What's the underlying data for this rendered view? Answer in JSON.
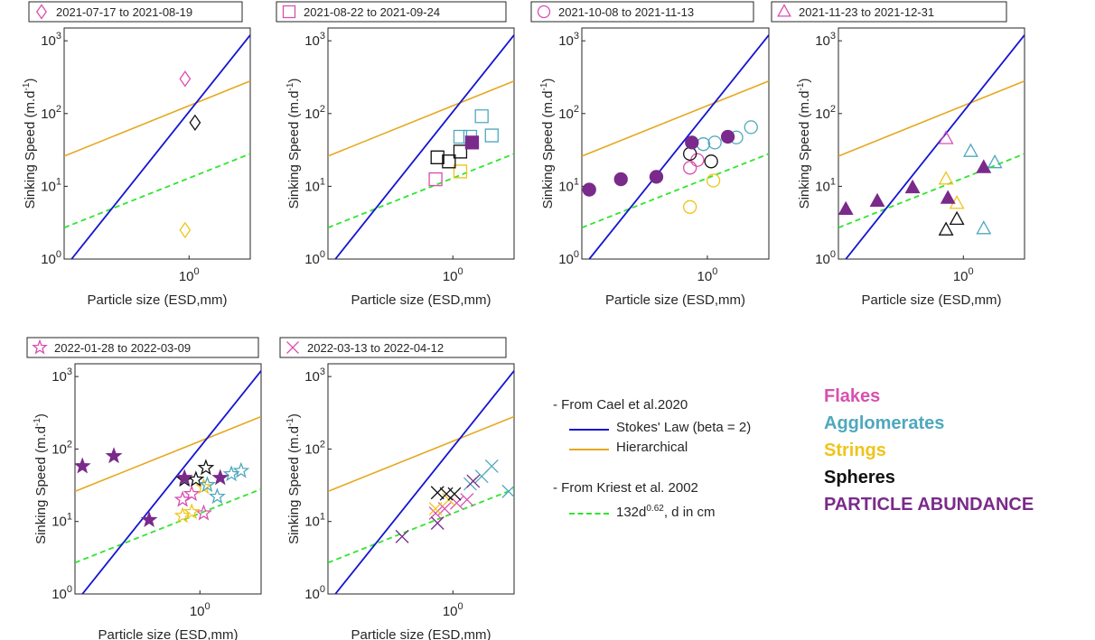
{
  "colors": {
    "stokes": "#1414d2",
    "hierarchical": "#e6a820",
    "kriest": "#2ee62e",
    "flakes": "#d94fb0",
    "agglomerates": "#4ea8bd",
    "strings": "#f0c419",
    "spheres": "#111111",
    "abundance": "#7a2a8a"
  },
  "legend": {
    "cael_header": "- From Cael et al.2020",
    "stokes_label": "Stokes' Law (beta = 2)",
    "hierarchical_label": "Hierarchical",
    "kriest_header": "- From Kriest et al. 2002",
    "kriest_prefix": "132d",
    "kriest_exponent": "0.62",
    "kriest_suffix": ", d in cm"
  },
  "categories": [
    {
      "label": "Flakes",
      "color": "#d94fb0"
    },
    {
      "label": "Agglomerates",
      "color": "#4ea8bd"
    },
    {
      "label": "Strings",
      "color": "#f0c419"
    },
    {
      "label": "Spheres",
      "color": "#111111"
    },
    {
      "label": "PARTICLE ABUNDANCE",
      "color": "#7a2a8a"
    }
  ],
  "chart_data": [
    {
      "type": "scatter",
      "title": "2021-07-17 to 2021-08-19",
      "marker": "diamond",
      "xlabel": "Particle size (ESD,mm)",
      "ylabel": "Sinking Speed (m.d-1)",
      "xscale": "log",
      "yscale": "log",
      "xlim": [
        0.2,
        2.2
      ],
      "ylim": [
        1,
        1500
      ],
      "grid": false,
      "xticks": [
        {
          "v": 1,
          "base": "10",
          "exp": "0"
        }
      ],
      "yticks": [
        {
          "v": 1,
          "base": "10",
          "exp": "0"
        },
        {
          "v": 10,
          "base": "10",
          "exp": "1"
        },
        {
          "v": 100,
          "base": "10",
          "exp": "2"
        },
        {
          "v": 1000,
          "base": "10",
          "exp": "3"
        }
      ],
      "lines": {
        "stokes": [
          [
            0.22,
            1
          ],
          [
            2.2,
            1200
          ]
        ],
        "hierarchical": [
          [
            0.2,
            26
          ],
          [
            2.2,
            280
          ]
        ],
        "kriest": [
          [
            0.2,
            2.7
          ],
          [
            2.2,
            28
          ]
        ]
      },
      "series": [
        {
          "category": "Flakes",
          "filled": false,
          "points": [
            [
              0.95,
              300
            ]
          ]
        },
        {
          "category": "Strings",
          "filled": false,
          "points": [
            [
              0.95,
              2.5
            ]
          ]
        },
        {
          "category": "Spheres",
          "filled": false,
          "points": [
            [
              1.08,
              75
            ]
          ]
        }
      ]
    },
    {
      "type": "scatter",
      "title": "2021-08-22 to 2021-09-24",
      "marker": "square",
      "xlabel": "Particle size (ESD,mm)",
      "ylabel": "Sinking Speed (m.d-1)",
      "xscale": "log",
      "yscale": "log",
      "xlim": [
        0.2,
        2.2
      ],
      "ylim": [
        1,
        1500
      ],
      "grid": false,
      "xticks": [
        {
          "v": 1,
          "base": "10",
          "exp": "0"
        }
      ],
      "yticks": [
        {
          "v": 1,
          "base": "10",
          "exp": "0"
        },
        {
          "v": 10,
          "base": "10",
          "exp": "1"
        },
        {
          "v": 100,
          "base": "10",
          "exp": "2"
        },
        {
          "v": 1000,
          "base": "10",
          "exp": "3"
        }
      ],
      "lines": {
        "stokes": [
          [
            0.22,
            1
          ],
          [
            2.2,
            1200
          ]
        ],
        "hierarchical": [
          [
            0.2,
            26
          ],
          [
            2.2,
            280
          ]
        ],
        "kriest": [
          [
            0.2,
            2.7
          ],
          [
            2.2,
            28
          ]
        ]
      },
      "series": [
        {
          "category": "Flakes",
          "filled": false,
          "points": [
            [
              0.8,
              12.5
            ]
          ]
        },
        {
          "category": "Strings",
          "filled": false,
          "points": [
            [
              1.1,
              16
            ]
          ]
        },
        {
          "category": "Spheres",
          "filled": false,
          "points": [
            [
              0.82,
              25
            ],
            [
              0.95,
              22
            ],
            [
              1.1,
              30
            ]
          ]
        },
        {
          "category": "Agglomerates",
          "filled": false,
          "points": [
            [
              1.1,
              48
            ],
            [
              1.25,
              48
            ],
            [
              1.45,
              92
            ],
            [
              1.65,
              50
            ]
          ]
        },
        {
          "category": "PARTICLE ABUNDANCE",
          "filled": true,
          "points": [
            [
              1.28,
              40
            ]
          ]
        }
      ]
    },
    {
      "type": "scatter",
      "title": "2021-10-08 to 2021-11-13",
      "marker": "circle",
      "xlabel": "Particle size (ESD,mm)",
      "ylabel": "Sinking Speed (m.d-1)",
      "xscale": "log",
      "yscale": "log",
      "xlim": [
        0.2,
        2.2
      ],
      "ylim": [
        1,
        1500
      ],
      "grid": false,
      "xticks": [
        {
          "v": 1,
          "base": "10",
          "exp": "0"
        }
      ],
      "yticks": [
        {
          "v": 1,
          "base": "10",
          "exp": "0"
        },
        {
          "v": 10,
          "base": "10",
          "exp": "1"
        },
        {
          "v": 100,
          "base": "10",
          "exp": "2"
        },
        {
          "v": 1000,
          "base": "10",
          "exp": "3"
        }
      ],
      "lines": {
        "stokes": [
          [
            0.22,
            1
          ],
          [
            2.2,
            1200
          ]
        ],
        "hierarchical": [
          [
            0.2,
            26
          ],
          [
            2.2,
            280
          ]
        ],
        "kriest": [
          [
            0.2,
            2.7
          ],
          [
            2.2,
            28
          ]
        ]
      },
      "series": [
        {
          "category": "Flakes",
          "filled": false,
          "points": [
            [
              0.8,
              18
            ],
            [
              0.88,
              23
            ]
          ]
        },
        {
          "category": "Strings",
          "filled": false,
          "points": [
            [
              0.8,
              5.2
            ],
            [
              1.08,
              12
            ]
          ]
        },
        {
          "category": "Spheres",
          "filled": false,
          "points": [
            [
              0.8,
              28
            ],
            [
              1.05,
              22
            ]
          ]
        },
        {
          "category": "Agglomerates",
          "filled": false,
          "points": [
            [
              0.95,
              38
            ],
            [
              1.1,
              40
            ],
            [
              1.45,
              47
            ],
            [
              1.75,
              65
            ]
          ]
        },
        {
          "category": "PARTICLE ABUNDANCE",
          "filled": true,
          "points": [
            [
              0.22,
              9
            ],
            [
              0.33,
              12.5
            ],
            [
              0.52,
              13.5
            ],
            [
              0.82,
              40
            ],
            [
              1.3,
              48
            ]
          ]
        }
      ]
    },
    {
      "type": "scatter",
      "title": "2021-11-23 to 2021-12-31",
      "marker": "triangle",
      "xlabel": "Particle size (ESD,mm)",
      "ylabel": "Sinking Speed (m.d-1)",
      "xscale": "log",
      "yscale": "log",
      "xlim": [
        0.2,
        2.2
      ],
      "ylim": [
        1,
        1500
      ],
      "grid": false,
      "xticks": [
        {
          "v": 1,
          "base": "10",
          "exp": "0"
        }
      ],
      "yticks": [
        {
          "v": 1,
          "base": "10",
          "exp": "0"
        },
        {
          "v": 10,
          "base": "10",
          "exp": "1"
        },
        {
          "v": 100,
          "base": "10",
          "exp": "2"
        },
        {
          "v": 1000,
          "base": "10",
          "exp": "3"
        }
      ],
      "lines": {
        "stokes": [
          [
            0.22,
            1
          ],
          [
            2.2,
            1200
          ]
        ],
        "hierarchical": [
          [
            0.2,
            26
          ],
          [
            2.2,
            280
          ]
        ],
        "kriest": [
          [
            0.2,
            2.7
          ],
          [
            2.2,
            28
          ]
        ]
      },
      "series": [
        {
          "category": "Flakes",
          "filled": false,
          "points": [
            [
              0.8,
              45
            ]
          ]
        },
        {
          "category": "Strings",
          "filled": false,
          "points": [
            [
              0.8,
              12.5
            ],
            [
              0.92,
              5.8
            ]
          ]
        },
        {
          "category": "Spheres",
          "filled": false,
          "points": [
            [
              0.8,
              2.5
            ],
            [
              0.92,
              3.5
            ]
          ]
        },
        {
          "category": "Agglomerates",
          "filled": false,
          "points": [
            [
              1.1,
              30
            ],
            [
              1.3,
              2.6
            ],
            [
              1.5,
              21
            ]
          ]
        },
        {
          "category": "PARTICLE ABUNDANCE",
          "filled": true,
          "points": [
            [
              0.22,
              4.8
            ],
            [
              0.33,
              6.2
            ],
            [
              0.52,
              9.5
            ],
            [
              0.82,
              6.8
            ],
            [
              1.3,
              18
            ]
          ]
        }
      ]
    },
    {
      "type": "scatter",
      "title": "2022-01-28 to 2022-03-09",
      "marker": "star",
      "xlabel": "Particle size (ESD,mm)",
      "ylabel": "Sinking Speed (m.d-1)",
      "xscale": "log",
      "yscale": "log",
      "xlim": [
        0.2,
        2.2
      ],
      "ylim": [
        1,
        1500
      ],
      "grid": false,
      "xticks": [
        {
          "v": 1,
          "base": "10",
          "exp": "0"
        }
      ],
      "yticks": [
        {
          "v": 1,
          "base": "10",
          "exp": "0"
        },
        {
          "v": 10,
          "base": "10",
          "exp": "1"
        },
        {
          "v": 100,
          "base": "10",
          "exp": "2"
        },
        {
          "v": 1000,
          "base": "10",
          "exp": "3"
        }
      ],
      "lines": {
        "stokes": [
          [
            0.22,
            1
          ],
          [
            2.2,
            1200
          ]
        ],
        "hierarchical": [
          [
            0.2,
            26
          ],
          [
            2.2,
            280
          ]
        ],
        "kriest": [
          [
            0.2,
            2.7
          ],
          [
            2.2,
            28
          ]
        ]
      },
      "series": [
        {
          "category": "Flakes",
          "filled": false,
          "points": [
            [
              0.8,
              20
            ],
            [
              0.9,
              24
            ],
            [
              1.05,
              13
            ]
          ]
        },
        {
          "category": "Strings",
          "filled": false,
          "points": [
            [
              0.8,
              12
            ],
            [
              0.9,
              13.5
            ],
            [
              1.05,
              30
            ]
          ]
        },
        {
          "category": "Spheres",
          "filled": false,
          "points": [
            [
              0.82,
              38
            ],
            [
              0.95,
              38
            ],
            [
              1.08,
              55
            ]
          ]
        },
        {
          "category": "Agglomerates",
          "filled": false,
          "points": [
            [
              1.1,
              32
            ],
            [
              1.25,
              22
            ],
            [
              1.5,
              45
            ],
            [
              1.7,
              50
            ]
          ]
        },
        {
          "category": "PARTICLE ABUNDANCE",
          "filled": true,
          "points": [
            [
              0.22,
              58
            ],
            [
              0.33,
              80
            ],
            [
              0.52,
              10.5
            ],
            [
              0.82,
              40
            ],
            [
              1.3,
              40
            ]
          ]
        }
      ]
    },
    {
      "type": "scatter",
      "title": "2022-03-13 to 2022-04-12",
      "marker": "cross",
      "xlabel": "Particle size (ESD,mm)",
      "ylabel": "Sinking Speed (m.d-1)",
      "xscale": "log",
      "yscale": "log",
      "xlim": [
        0.2,
        2.2
      ],
      "ylim": [
        1,
        1500
      ],
      "grid": false,
      "xticks": [
        {
          "v": 1,
          "base": "10",
          "exp": "0"
        }
      ],
      "yticks": [
        {
          "v": 1,
          "base": "10",
          "exp": "0"
        },
        {
          "v": 10,
          "base": "10",
          "exp": "1"
        },
        {
          "v": 100,
          "base": "10",
          "exp": "2"
        },
        {
          "v": 1000,
          "base": "10",
          "exp": "3"
        }
      ],
      "lines": {
        "stokes": [
          [
            0.22,
            1
          ],
          [
            2.2,
            1200
          ]
        ],
        "hierarchical": [
          [
            0.2,
            26
          ],
          [
            2.2,
            280
          ]
        ],
        "kriest": [
          [
            0.2,
            2.7
          ],
          [
            2.2,
            28
          ]
        ]
      },
      "series": [
        {
          "category": "Flakes",
          "filled": false,
          "points": [
            [
              0.8,
              13
            ],
            [
              0.9,
              15
            ],
            [
              1.05,
              18
            ],
            [
              1.2,
              20
            ]
          ]
        },
        {
          "category": "Strings",
          "filled": false,
          "points": [
            [
              0.8,
              15
            ],
            [
              0.95,
              20
            ]
          ]
        },
        {
          "category": "Spheres",
          "filled": false,
          "points": [
            [
              0.82,
              25
            ],
            [
              0.92,
              24
            ],
            [
              1.02,
              24
            ]
          ]
        },
        {
          "category": "Agglomerates",
          "filled": false,
          "points": [
            [
              1.25,
              33
            ],
            [
              1.45,
              42
            ],
            [
              1.65,
              58
            ],
            [
              2.05,
              26
            ]
          ]
        },
        {
          "category": "PARTICLE ABUNDANCE",
          "filled": false,
          "points": [
            [
              0.52,
              6.2
            ],
            [
              0.82,
              9.5
            ],
            [
              1.3,
              36
            ]
          ]
        }
      ]
    }
  ]
}
